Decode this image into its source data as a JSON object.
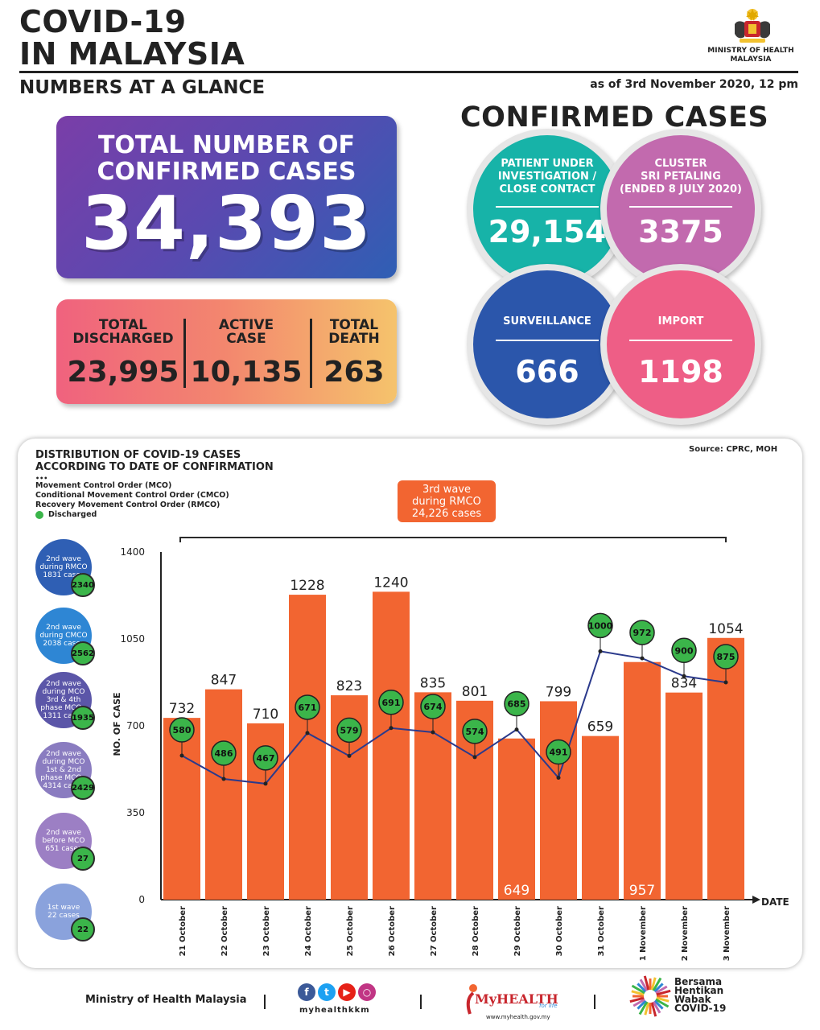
{
  "header": {
    "title_line1": "COVID-19",
    "title_line2": "IN MALAYSIA",
    "subtitle": "NUMBERS AT A GLANCE",
    "as_of": "as of 3rd November 2020, 12 pm",
    "ministry_line1": "MINISTRY OF HEALTH",
    "ministry_line2": "MALAYSIA"
  },
  "total": {
    "label_line1": "TOTAL NUMBER OF",
    "label_line2": "CONFIRMED CASES",
    "value": "34,393"
  },
  "stats": {
    "discharged_label1": "TOTAL",
    "discharged_label2": "DISCHARGED",
    "discharged_value": "23,995",
    "active_label1": "ACTIVE",
    "active_label2": "CASE",
    "active_value": "10,135",
    "death_label1": "TOTAL",
    "death_label2": "DEATH",
    "death_value": "263"
  },
  "confirmed": {
    "title": "CONFIRMED CASES",
    "pui_label": [
      "PATIENT UNDER",
      "INVESTIGATION /",
      "CLOSE CONTACT"
    ],
    "pui_value": "29,154",
    "cluster_label": [
      "CLUSTER",
      "SRI PETALING",
      "(ENDED 8 JULY 2020)"
    ],
    "cluster_value": "3375",
    "surveillance_label": "SURVEILLANCE",
    "surveillance_value": "666",
    "import_label": "IMPORT",
    "import_value": "1198"
  },
  "chart_panel": {
    "title_line1": "DISTRIBUTION OF COVID-19 CASES",
    "title_line2": "ACCORDING TO DATE OF CONFIRMATION",
    "source": "Source: CPRC, MOH",
    "legend": [
      "Movement Control Order (MCO)",
      "Conditional Movement Control Order (CMCO)",
      "Recovery Movement Control Order (RMCO)",
      "Discharged"
    ],
    "wave_box": [
      "3rd wave",
      "during RMCO",
      "24,226 cases"
    ],
    "waves": [
      {
        "lines": [
          "2nd wave",
          "during RMCO",
          "1831 cases"
        ],
        "discharged": "2340",
        "color": "#2f5fb4"
      },
      {
        "lines": [
          "2nd wave",
          "during CMCO",
          "2038 cases"
        ],
        "discharged": "2562",
        "color": "#2e86d4"
      },
      {
        "lines": [
          "2nd wave",
          "during MCO",
          "3rd & 4th",
          "phase MCO -",
          "1311 cases"
        ],
        "discharged": "1935",
        "color": "#5b56a8"
      },
      {
        "lines": [
          "2nd wave",
          "during MCO",
          "1st & 2nd",
          "phase MCO -",
          "4314 cases"
        ],
        "discharged": "2429",
        "color": "#8a7cc0"
      },
      {
        "lines": [
          "2nd wave",
          "before MCO",
          "651 cases"
        ],
        "discharged": "27",
        "color": "#9c7fc4"
      },
      {
        "lines": [
          "1st wave",
          "22 cases"
        ],
        "discharged": "22",
        "color": "#8aa2dc"
      }
    ]
  },
  "chart_data": {
    "type": "bar",
    "categories": [
      "21 October",
      "22 October",
      "23 October",
      "24 October",
      "25 October",
      "26 October",
      "27 October",
      "28 October",
      "29 October",
      "30 October",
      "31 October",
      "1 November",
      "2 November",
      "3 November"
    ],
    "series": [
      {
        "values": [
          732,
          847,
          710,
          1228,
          823,
          1240,
          835,
          801,
          649,
          799,
          659,
          957,
          834,
          1054
        ],
        "color": "#f26531"
      },
      {
        "name": "Discharged",
        "values": [
          580,
          486,
          467,
          671,
          579,
          691,
          674,
          574,
          685,
          491,
          1000,
          972,
          900,
          875
        ],
        "color": "#2b3a8c"
      }
    ],
    "ylabel": "NO. OF CASE",
    "xlabel": "DATE",
    "yticks": [
      "0",
      "350",
      "700",
      "1050",
      "1400"
    ],
    "ylim": [
      0,
      1400
    ]
  },
  "footer": {
    "moh": "Ministry of Health Malaysia",
    "social_handle": "myhealthkkm",
    "myhealth": "MyHEALTH",
    "myhealth_tag": "for life",
    "myhealth_url": "www.myhealth.gov.my",
    "campaign": [
      "Bersama",
      "Hentikan",
      "Wabak",
      "COVID-19"
    ]
  }
}
